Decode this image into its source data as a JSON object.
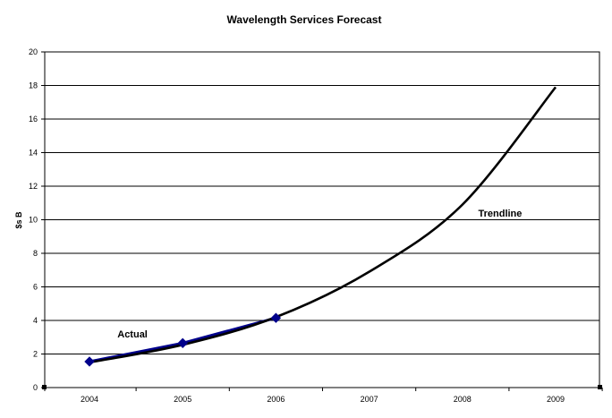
{
  "chart_data": {
    "type": "line",
    "title": "Wavelength Services Forecast",
    "xlabel": "",
    "ylabel": "$s B",
    "categories": [
      "2004",
      "2005",
      "2006",
      "2007",
      "2008",
      "2009"
    ],
    "ylim": [
      0,
      20
    ],
    "yticks": [
      0,
      2,
      4,
      6,
      8,
      10,
      12,
      14,
      16,
      18,
      20
    ],
    "grid": "horizontal",
    "series": [
      {
        "name": "Actual",
        "x": [
          2004,
          2005,
          2006
        ],
        "values": [
          1.55,
          2.65,
          4.15
        ],
        "color": "#00008B",
        "marker": "diamond"
      },
      {
        "name": "Trendline",
        "x": [
          2004,
          2005,
          2006,
          2007,
          2008,
          2009
        ],
        "values": [
          1.5,
          2.55,
          4.2,
          6.9,
          10.9,
          17.9
        ],
        "color": "#000000"
      }
    ],
    "annotations": [
      {
        "text": "Actual",
        "x": 2004.3,
        "y": 3.0
      },
      {
        "text": "Trendline",
        "x": 2008.17,
        "y": 10.2
      }
    ]
  }
}
